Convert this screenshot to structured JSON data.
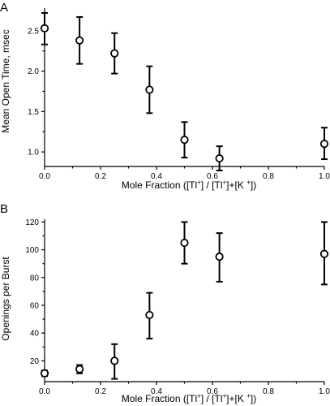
{
  "chart_data": [
    {
      "type": "scatter",
      "panel_label": "A",
      "xlabel": {
        "prefix": "Mole Fraction ([Tl",
        "mid": "] /  [Tl",
        "mid2": "]+[K ",
        "suffix": "])",
        "plus": "+"
      },
      "ylabel": "Mean Open Time, msec",
      "xlim": [
        0,
        1.0
      ],
      "ylim": [
        0.82,
        2.78
      ],
      "x_ticks": [
        0.0,
        0.2,
        0.4,
        0.6,
        0.8,
        1.0
      ],
      "x_tick_labels": [
        "0.0",
        "0.2",
        "0.4",
        "0.6",
        "0.8",
        "1.0"
      ],
      "y_ticks": [
        1.0,
        1.5,
        2.0,
        2.5
      ],
      "y_tick_labels": [
        "1.0",
        "1.5",
        "2.0",
        "2.5"
      ],
      "grid": false,
      "points": [
        {
          "x": 0.0,
          "y": 2.53,
          "err_low": 2.33,
          "err_high": 2.72
        },
        {
          "x": 0.125,
          "y": 2.38,
          "err_low": 2.09,
          "err_high": 2.67
        },
        {
          "x": 0.25,
          "y": 2.22,
          "err_low": 1.97,
          "err_high": 2.47
        },
        {
          "x": 0.375,
          "y": 1.77,
          "err_low": 1.48,
          "err_high": 2.06
        },
        {
          "x": 0.5,
          "y": 1.15,
          "err_low": 0.93,
          "err_high": 1.37
        },
        {
          "x": 0.625,
          "y": 0.92,
          "err_low": 0.77,
          "err_high": 1.07
        },
        {
          "x": 1.0,
          "y": 1.1,
          "err_low": 0.91,
          "err_high": 1.3
        }
      ]
    },
    {
      "type": "scatter",
      "panel_label": "B",
      "xlabel": {
        "prefix": "Mole Fraction ([Tl",
        "mid": "] /  [Tl",
        "mid2": "]+[K ",
        "suffix": "])",
        "plus": "+"
      },
      "ylabel": "Openings per Burst",
      "xlim": [
        0,
        1.0
      ],
      "ylim": [
        5,
        122
      ],
      "x_ticks": [
        0.0,
        0.2,
        0.4,
        0.6,
        0.8,
        1.0
      ],
      "x_tick_labels": [
        "0.0",
        "0.2",
        "0.4",
        "0.6",
        "0.8",
        "1.0"
      ],
      "y_ticks": [
        20,
        40,
        60,
        80,
        100,
        120
      ],
      "y_tick_labels": [
        "20",
        "40",
        "60",
        "80",
        "100",
        "120"
      ],
      "grid": false,
      "points": [
        {
          "x": 0.0,
          "y": 11,
          "err_low": 9,
          "err_high": 13
        },
        {
          "x": 0.125,
          "y": 14,
          "err_low": 11,
          "err_high": 17
        },
        {
          "x": 0.25,
          "y": 20,
          "err_low": 7,
          "err_high": 32
        },
        {
          "x": 0.375,
          "y": 53,
          "err_low": 36,
          "err_high": 69
        },
        {
          "x": 0.5,
          "y": 105,
          "err_low": 90,
          "err_high": 120
        },
        {
          "x": 0.625,
          "y": 95,
          "err_low": 77,
          "err_high": 112
        },
        {
          "x": 1.0,
          "y": 97,
          "err_low": 75,
          "err_high": 120
        }
      ]
    }
  ]
}
